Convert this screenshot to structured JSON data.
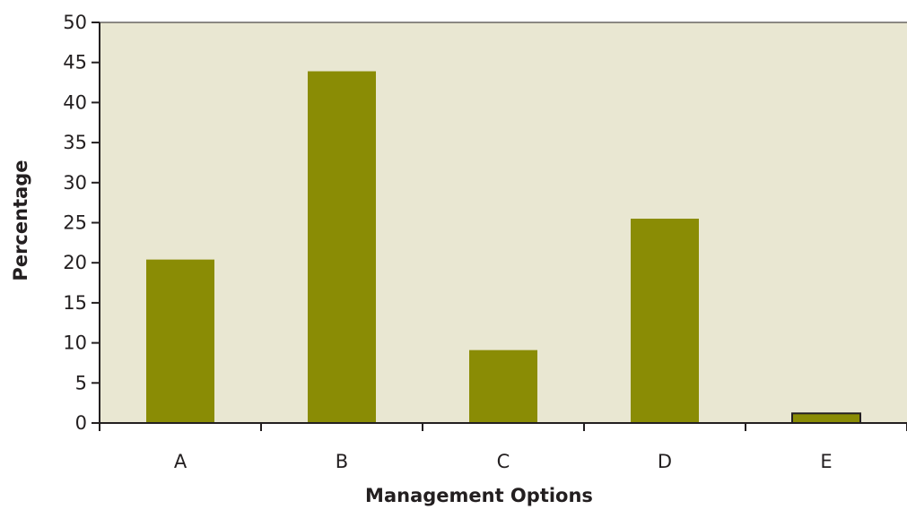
{
  "colors": {
    "plot_background": "#e9e7d2",
    "bar_fill": "#8a8c05",
    "axis": "#231f20"
  },
  "chart_data": {
    "type": "bar",
    "title": "",
    "xlabel": "Management Options",
    "ylabel": "Percentage",
    "categories": [
      "A",
      "B",
      "C",
      "D",
      "E"
    ],
    "values": [
      20.4,
      43.9,
      9.1,
      25.5,
      1.2
    ],
    "ylim": [
      0,
      50
    ],
    "yticks": [
      0,
      5,
      10,
      15,
      20,
      25,
      30,
      35,
      40,
      45,
      50
    ],
    "grid": false,
    "legend": "none"
  }
}
